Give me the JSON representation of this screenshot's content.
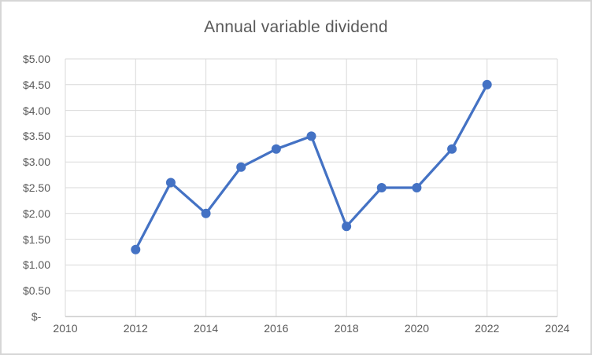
{
  "chart_data": {
    "type": "line",
    "title": "Annual variable dividend",
    "xlabel": "",
    "ylabel": "",
    "x": [
      2012,
      2013,
      2014,
      2015,
      2016,
      2017,
      2018,
      2019,
      2020,
      2021,
      2022
    ],
    "values": [
      1.3,
      2.6,
      2.0,
      2.9,
      3.25,
      3.5,
      1.75,
      2.5,
      2.5,
      3.25,
      4.5
    ],
    "series_name": "Annual variable dividend",
    "xlim": [
      2010,
      2024
    ],
    "ylim": [
      0,
      5
    ],
    "x_ticks": [
      {
        "value": 2010,
        "label": "2010"
      },
      {
        "value": 2012,
        "label": "2012"
      },
      {
        "value": 2014,
        "label": "2014"
      },
      {
        "value": 2016,
        "label": "2016"
      },
      {
        "value": 2018,
        "label": "2018"
      },
      {
        "value": 2020,
        "label": "2020"
      },
      {
        "value": 2022,
        "label": "2022"
      },
      {
        "value": 2024,
        "label": "2024"
      }
    ],
    "y_ticks": [
      {
        "value": 5.0,
        "label": "$5.00"
      },
      {
        "value": 4.5,
        "label": "$4.50"
      },
      {
        "value": 4.0,
        "label": "$4.00"
      },
      {
        "value": 3.5,
        "label": "$3.50"
      },
      {
        "value": 3.0,
        "label": "$3.00"
      },
      {
        "value": 2.5,
        "label": "$2.50"
      },
      {
        "value": 2.0,
        "label": "$2.00"
      },
      {
        "value": 1.5,
        "label": "$1.50"
      },
      {
        "value": 1.0,
        "label": "$1.00"
      },
      {
        "value": 0.5,
        "label": "$0.50"
      },
      {
        "value": 0.0,
        "label": "$-   "
      }
    ],
    "grid": true,
    "legend": false,
    "marker": "circle"
  },
  "styles": {
    "series_color": "#4472C4",
    "title_color": "#595959",
    "tick_label_color": "#595959",
    "gridline_color": "#d9d9d9",
    "axis_line_color": "#bfbfbf",
    "frame_border_color": "#d6d6d6",
    "background_color": "#ffffff"
  }
}
